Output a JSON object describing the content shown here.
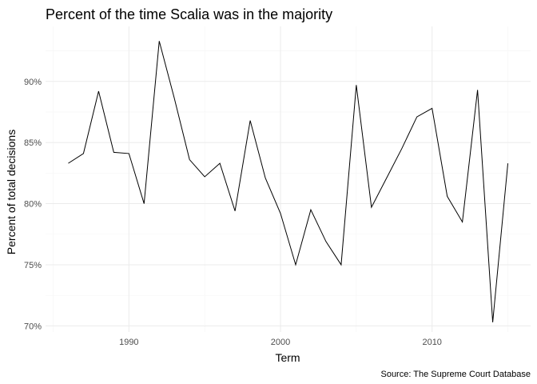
{
  "chart_data": {
    "type": "line",
    "title": "Percent of the time Scalia was in the majority",
    "xlabel": "Term",
    "ylabel": "Percent of total decisions",
    "caption": "Source: The Supreme Court Database",
    "xlim": [
      1984.5,
      2016.5
    ],
    "ylim": [
      69.5,
      94.5
    ],
    "xticks": [
      1990,
      2000,
      2010
    ],
    "xtick_labels": [
      "1990",
      "2000",
      "2010"
    ],
    "yticks": [
      70,
      75,
      80,
      85,
      90
    ],
    "ytick_labels": [
      "70%",
      "75%",
      "80%",
      "85%",
      "90%"
    ],
    "grid": true,
    "legend": "none",
    "line_color": "#000000",
    "series": [
      {
        "x": [
          1986,
          1987,
          1988,
          1989,
          1990,
          1991,
          1992,
          1993,
          1994,
          1995,
          1996,
          1997,
          1998,
          1999,
          2000,
          2001,
          2002,
          2003,
          2004,
          2005,
          2006,
          2007,
          2008,
          2009,
          2010,
          2011,
          2012,
          2013,
          2014,
          2015
        ],
        "values": [
          83.3,
          84.1,
          89.2,
          84.2,
          84.1,
          80.0,
          93.3,
          88.6,
          83.6,
          82.2,
          83.3,
          79.4,
          86.8,
          82.1,
          79.2,
          75.0,
          79.5,
          76.9,
          75.0,
          89.7,
          79.7,
          82.1,
          84.5,
          87.1,
          87.8,
          80.6,
          78.5,
          89.3,
          70.3,
          83.3
        ]
      }
    ]
  }
}
